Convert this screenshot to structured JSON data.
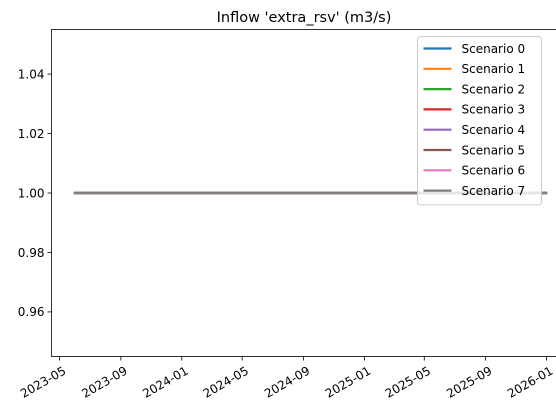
{
  "chart_data": {
    "type": "line",
    "title": "Inflow 'extra_rsv' (m3/s)",
    "xlabel": "",
    "ylabel": "",
    "x_axis_type": "date",
    "xlim": [
      "2023-04-15",
      "2026-01-21"
    ],
    "ylim": [
      0.945,
      1.055
    ],
    "x_ticks": [
      "2023-05",
      "2023-09",
      "2024-01",
      "2024-05",
      "2024-09",
      "2025-01",
      "2025-05",
      "2025-09",
      "2026-01"
    ],
    "y_ticks": [
      0.96,
      0.98,
      1.0,
      1.02,
      1.04
    ],
    "y_tick_labels": [
      "0.96",
      "0.98",
      "1.00",
      "1.02",
      "1.04"
    ],
    "grid": false,
    "legend_position": "top-right",
    "series": [
      {
        "name": "Scenario 0",
        "color": "#1f77b4",
        "x": [
          "2023-06-01",
          "2025-12-31"
        ],
        "y": [
          1.0,
          1.0
        ]
      },
      {
        "name": "Scenario 1",
        "color": "#ff7f0e",
        "x": [
          "2023-06-01",
          "2025-12-31"
        ],
        "y": [
          1.0,
          1.0
        ]
      },
      {
        "name": "Scenario 2",
        "color": "#2ca02c",
        "x": [
          "2023-06-01",
          "2025-12-31"
        ],
        "y": [
          1.0,
          1.0
        ]
      },
      {
        "name": "Scenario 3",
        "color": "#d62728",
        "x": [
          "2023-06-01",
          "2025-12-31"
        ],
        "y": [
          1.0,
          1.0
        ]
      },
      {
        "name": "Scenario 4",
        "color": "#9467bd",
        "x": [
          "2023-06-01",
          "2025-12-31"
        ],
        "y": [
          1.0,
          1.0
        ]
      },
      {
        "name": "Scenario 5",
        "color": "#8c564b",
        "x": [
          "2023-06-01",
          "2025-12-31"
        ],
        "y": [
          1.0,
          1.0
        ]
      },
      {
        "name": "Scenario 6",
        "color": "#e377c2",
        "x": [
          "2023-06-01",
          "2025-12-31"
        ],
        "y": [
          1.0,
          1.0
        ]
      },
      {
        "name": "Scenario 7",
        "color": "#7f7f7f",
        "x": [
          "2023-06-01",
          "2025-12-31"
        ],
        "y": [
          1.0,
          1.0
        ]
      }
    ]
  }
}
